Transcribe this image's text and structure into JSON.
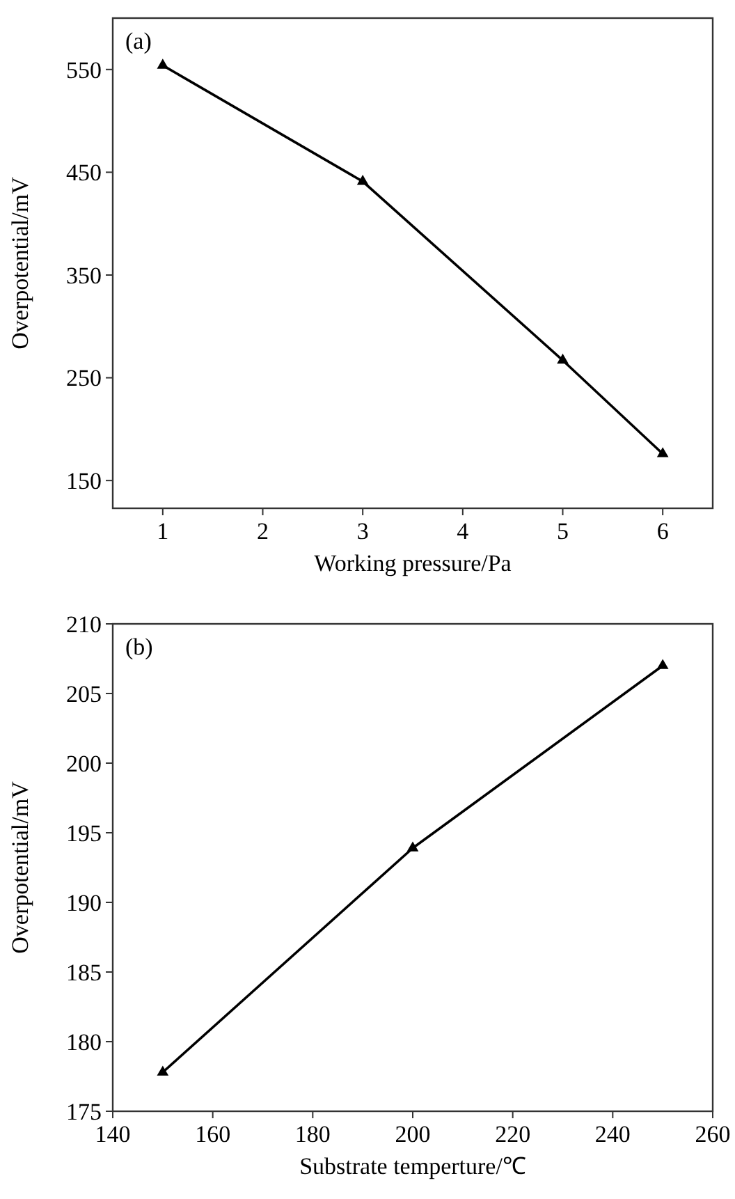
{
  "chart_data": [
    {
      "type": "line",
      "xlabel": "Working pressure/Pa",
      "ylabel": "Overpotential/mV",
      "annotations": [
        "(a)"
      ],
      "x": [
        1,
        3,
        5,
        6
      ],
      "series": [
        {
          "color": "#000000",
          "values": [
            554,
            441,
            267,
            176
          ]
        }
      ],
      "xlim": [
        0.5,
        6.5
      ],
      "xticks": [
        1,
        2,
        3,
        4,
        5,
        6
      ],
      "ylim": [
        123,
        600
      ],
      "yticks": [
        150,
        250,
        350,
        450,
        550
      ],
      "grid": false,
      "marker": "triangle",
      "line_style": "solid"
    },
    {
      "type": "line",
      "xlabel": "Substrate temperture/℃",
      "ylabel": "Overpotential/mV",
      "annotations": [
        "(b)"
      ],
      "x": [
        150,
        200,
        250
      ],
      "series": [
        {
          "color": "#000000",
          "values": [
            177.8,
            193.9,
            207.0
          ]
        }
      ],
      "xlim": [
        140,
        260
      ],
      "xticks": [
        140,
        160,
        180,
        200,
        220,
        240,
        260
      ],
      "ylim": [
        175,
        210
      ],
      "yticks": [
        175,
        180,
        185,
        190,
        195,
        200,
        205,
        210
      ],
      "grid": false,
      "marker": "triangle",
      "line_style": "solid"
    }
  ]
}
